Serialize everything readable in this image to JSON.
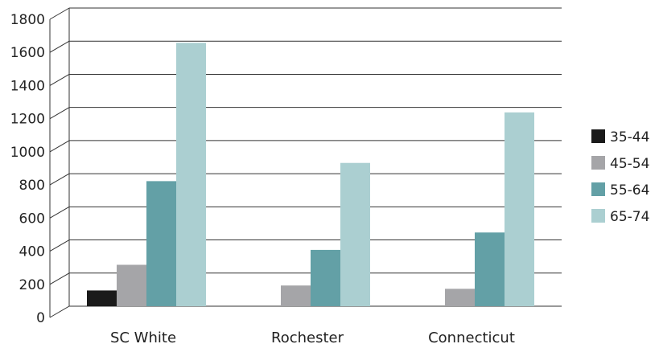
{
  "chart_data": {
    "type": "bar",
    "title": "",
    "xlabel": "",
    "ylabel": "",
    "categories": [
      "SC White",
      "Rochester",
      "Connecticut"
    ],
    "series": [
      {
        "name": "35-44",
        "color": "#1a1a1a",
        "values": [
          95,
          0,
          0
        ]
      },
      {
        "name": "45-54",
        "color": "#a5a5a8",
        "values": [
          250,
          125,
          105
        ]
      },
      {
        "name": "55-64",
        "color": "#63a0a6",
        "values": [
          755,
          340,
          445
        ]
      },
      {
        "name": "65-74",
        "color": "#abcfd1",
        "values": [
          1590,
          865,
          1170
        ]
      }
    ],
    "ylim": [
      0,
      1800
    ],
    "yticks": [
      0,
      200,
      400,
      600,
      800,
      1000,
      1200,
      1400,
      1600,
      1800
    ],
    "grid": true,
    "legend_position": "right"
  }
}
